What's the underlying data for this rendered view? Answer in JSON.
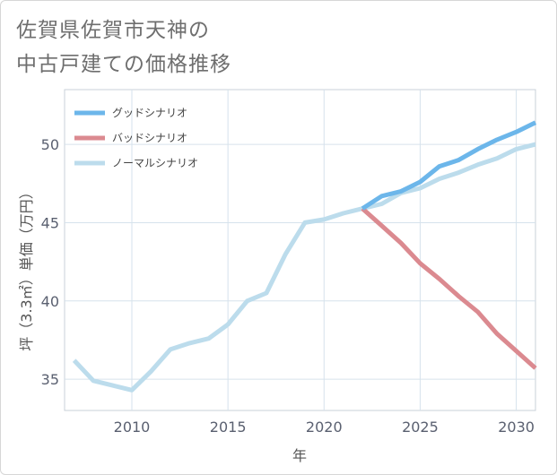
{
  "chart_data": {
    "type": "line",
    "title_lines": [
      "佐賀県佐賀市天神の",
      "中古戸建ての価格推移"
    ],
    "xlabel": "年",
    "ylabel": "坪（3.3㎡）単価（万円）",
    "xlim": [
      2006.5,
      2031
    ],
    "ylim": [
      33,
      53.5
    ],
    "xticks": [
      2010,
      2015,
      2020,
      2025,
      2030
    ],
    "yticks": [
      35,
      40,
      45,
      50
    ],
    "legend_position": "top-left",
    "series": [
      {
        "name": "グッドシナリオ",
        "color": "#6cb6ea",
        "x": [
          2022,
          2023,
          2024,
          2025,
          2026,
          2027,
          2028,
          2029,
          2030,
          2031
        ],
        "y": [
          45.9,
          46.7,
          47.0,
          47.6,
          48.6,
          49.0,
          49.7,
          50.3,
          50.8,
          51.4
        ]
      },
      {
        "name": "バッドシナリオ",
        "color": "#db8a90",
        "x": [
          2022,
          2023,
          2024,
          2025,
          2026,
          2027,
          2028,
          2029,
          2030,
          2031
        ],
        "y": [
          45.9,
          44.8,
          43.7,
          42.4,
          41.4,
          40.3,
          39.3,
          37.9,
          36.8,
          35.7
        ]
      },
      {
        "name": "ノーマルシナリオ",
        "color": "#bcdcec",
        "x": [
          2007,
          2008,
          2009,
          2010,
          2011,
          2012,
          2013,
          2014,
          2015,
          2016,
          2017,
          2018,
          2019,
          2020,
          2021,
          2022,
          2023,
          2024,
          2025,
          2026,
          2027,
          2028,
          2029,
          2030,
          2031
        ],
        "y": [
          36.2,
          34.9,
          34.6,
          34.3,
          35.5,
          36.9,
          37.3,
          37.6,
          38.5,
          40.0,
          40.5,
          43.0,
          45.0,
          45.2,
          45.6,
          45.9,
          46.2,
          46.9,
          47.2,
          47.8,
          48.2,
          48.7,
          49.1,
          49.7,
          50.0
        ]
      }
    ]
  }
}
